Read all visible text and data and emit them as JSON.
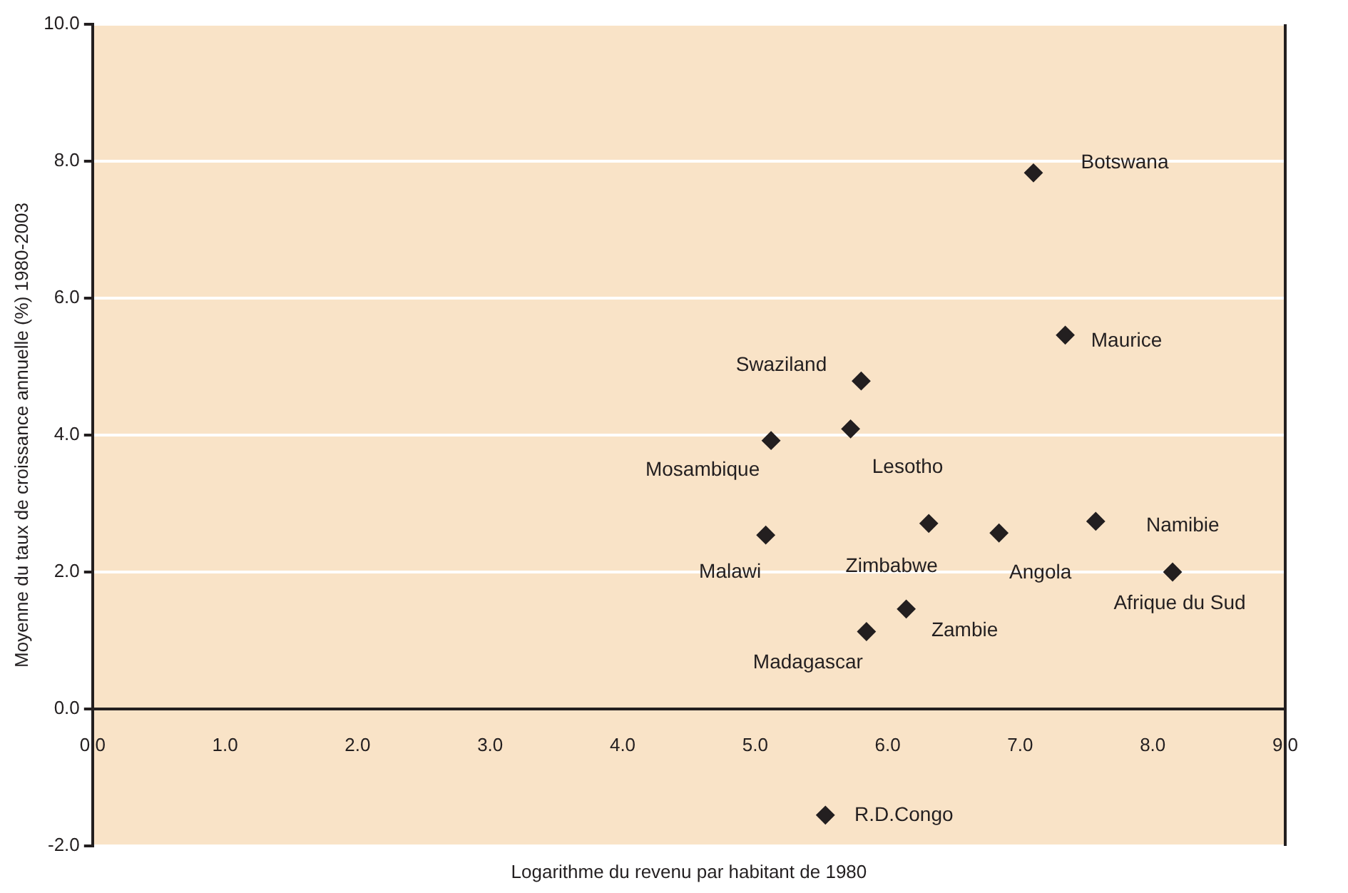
{
  "chart_data": {
    "type": "scatter",
    "xlabel": "Logarithme du revenu par habitant de 1980",
    "ylabel": "Moyenne du taux de croissance annuelle (%) 1980-2003",
    "x": [
      7.1,
      7.34,
      5.8,
      5.72,
      5.12,
      5.08,
      6.31,
      6.84,
      7.57,
      8.15,
      6.14,
      5.84,
      5.53
    ],
    "series": [
      {
        "color": "#231f20",
        "values": [
          7.83,
          5.46,
          4.79,
          4.09,
          3.92,
          2.54,
          2.71,
          2.57,
          2.74,
          2.0,
          1.46,
          1.13,
          -1.55
        ]
      }
    ],
    "xlim": [
      0,
      9
    ],
    "ylim": [
      -2,
      10
    ],
    "xticks": [
      {
        "value": 0,
        "label": "0.0"
      },
      {
        "value": 1,
        "label": "1.0"
      },
      {
        "value": 2,
        "label": "2.0"
      },
      {
        "value": 3,
        "label": "3.0"
      },
      {
        "value": 4,
        "label": "4.0"
      },
      {
        "value": 5,
        "label": "5.0"
      },
      {
        "value": 6,
        "label": "6.0"
      },
      {
        "value": 7,
        "label": "7.0"
      },
      {
        "value": 8,
        "label": "8.0"
      },
      {
        "value": 9,
        "label": "9.0"
      }
    ],
    "yticks": [
      {
        "value": -2,
        "label": "-2.0"
      },
      {
        "value": 0,
        "label": "0.0"
      },
      {
        "value": 2,
        "label": "2.0"
      },
      {
        "value": 4,
        "label": "4.0"
      },
      {
        "value": 6,
        "label": "6.0"
      },
      {
        "value": 8,
        "label": "8.0"
      },
      {
        "value": 10,
        "label": "10.0"
      }
    ],
    "grid": "y",
    "marker": "diamond",
    "legend": false,
    "annotations": [
      {
        "text": "Botswana",
        "x": 7.1,
        "y": 7.83
      },
      {
        "text": "Maurice",
        "x": 7.34,
        "y": 5.46
      },
      {
        "text": "Swaziland",
        "x": 5.8,
        "y": 4.79
      },
      {
        "text": "Lesotho",
        "x": 5.72,
        "y": 4.09
      },
      {
        "text": "Mosambique",
        "x": 5.12,
        "y": 3.92
      },
      {
        "text": "Malawi",
        "x": 5.08,
        "y": 2.54
      },
      {
        "text": "Zimbabwe",
        "x": 6.31,
        "y": 2.71
      },
      {
        "text": "Angola",
        "x": 6.84,
        "y": 2.57
      },
      {
        "text": "Namibie",
        "x": 7.57,
        "y": 2.74
      },
      {
        "text": "Afrique du Sud",
        "x": 8.15,
        "y": 2.0
      },
      {
        "text": "Zambie",
        "x": 6.14,
        "y": 1.46
      },
      {
        "text": "Madagascar",
        "x": 5.84,
        "y": 1.13
      },
      {
        "text": "R.D.Congo",
        "x": 5.53,
        "y": -1.55
      }
    ]
  }
}
